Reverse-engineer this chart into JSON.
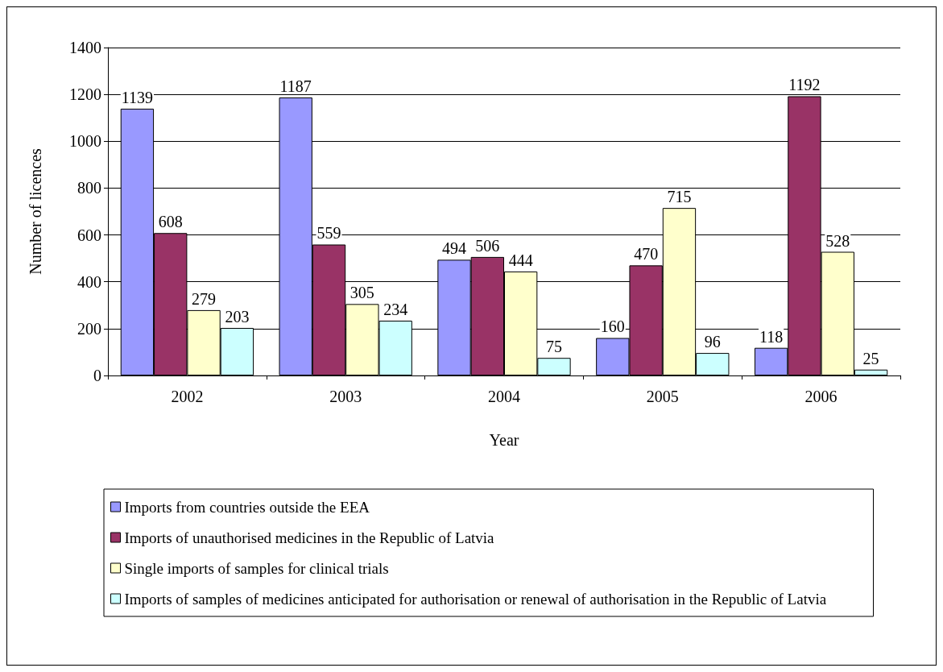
{
  "chart_data": {
    "type": "bar",
    "xlabel": "Year",
    "ylabel": "Number of licences",
    "categories": [
      "2002",
      "2003",
      "2004",
      "2005",
      "2006"
    ],
    "series": [
      {
        "name": "Imports from countries outside the EEA",
        "color": "#9999ff",
        "values": [
          1139,
          1187,
          494,
          160,
          118
        ]
      },
      {
        "name": "Imports of unauthorised medicines in the Republic of Latvia",
        "color": "#993366",
        "values": [
          608,
          559,
          506,
          470,
          1192
        ]
      },
      {
        "name": "Single imports of samples for clinical trials",
        "color": "#ffffcc",
        "values": [
          279,
          305,
          444,
          715,
          528
        ]
      },
      {
        "name": "Imports of samples of medicines anticipated for authorisation or renewal of authorisation in the Republic of Latvia",
        "color": "#ccffff",
        "values": [
          203,
          234,
          75,
          96,
          25
        ]
      }
    ],
    "ylim": [
      0,
      1400
    ],
    "yticks": [
      0,
      200,
      400,
      600,
      800,
      1000,
      1200,
      1400
    ],
    "grid": "y",
    "data_labels": true,
    "legend": "bottom"
  }
}
